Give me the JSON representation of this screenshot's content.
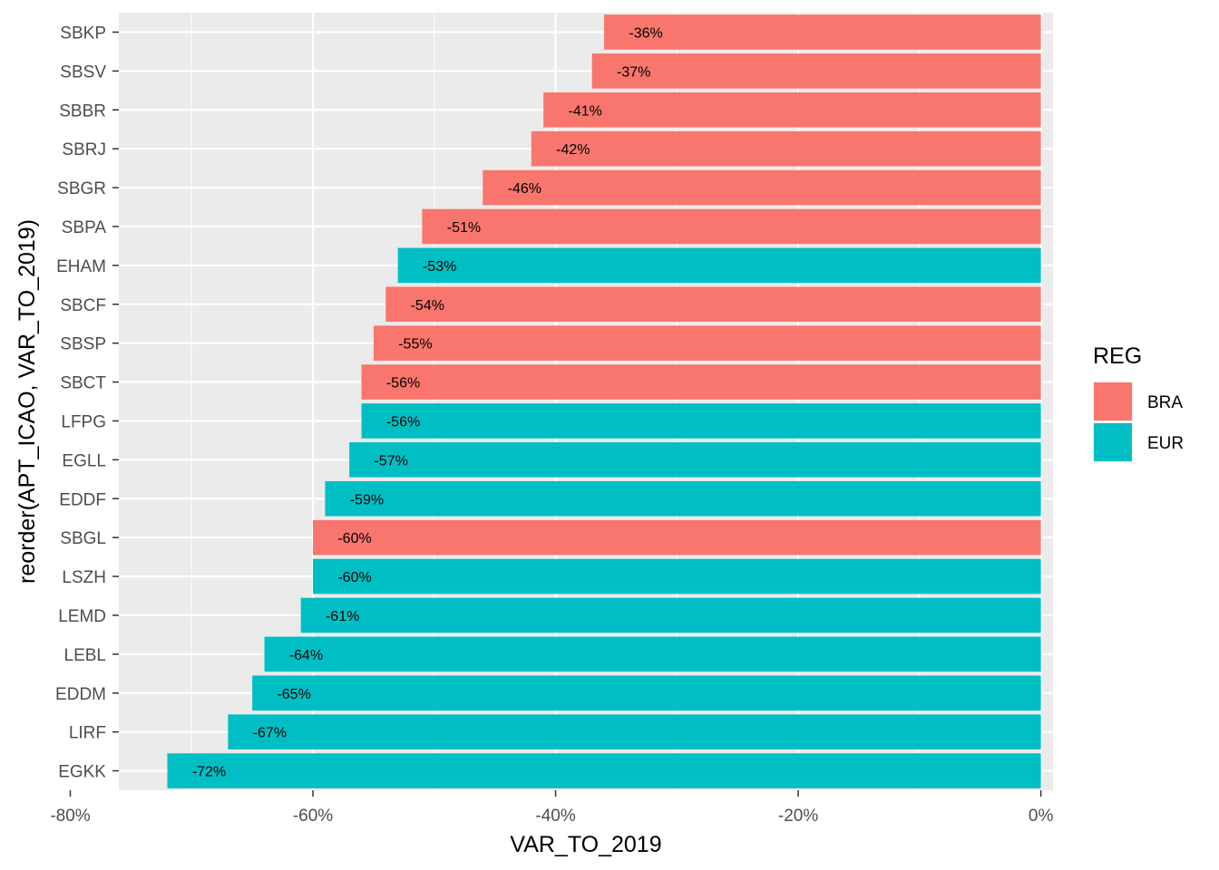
{
  "chart_data": {
    "type": "bar",
    "orientation": "horizontal",
    "xlabel": "VAR_TO_2019",
    "ylabel": "reorder(APT_ICAO, VAR_TO_2019)",
    "xlim": [
      -0.76,
      0.01
    ],
    "x_ticks": [
      -0.8,
      -0.6,
      -0.4,
      -0.2,
      0.0
    ],
    "x_tick_labels": [
      "-80%",
      "-60%",
      "-40%",
      "-20%",
      "0%"
    ],
    "grid": true,
    "legend": {
      "title": "REG",
      "placement": "right",
      "entries": [
        {
          "name": "BRA",
          "color": "#F8766D"
        },
        {
          "name": "EUR",
          "color": "#00BFC4"
        }
      ]
    },
    "categories": [
      "SBKP",
      "SBSV",
      "SBBR",
      "SBRJ",
      "SBGR",
      "SBPA",
      "EHAM",
      "SBCF",
      "SBSP",
      "SBCT",
      "LFPG",
      "EGLL",
      "EDDF",
      "SBGL",
      "LSZH",
      "LEMD",
      "LEBL",
      "EDDM",
      "LIRF",
      "EGKK"
    ],
    "values": [
      -0.36,
      -0.37,
      -0.41,
      -0.42,
      -0.46,
      -0.51,
      -0.53,
      -0.54,
      -0.55,
      -0.56,
      -0.56,
      -0.57,
      -0.59,
      -0.6,
      -0.6,
      -0.61,
      -0.64,
      -0.65,
      -0.67,
      -0.72
    ],
    "labels": [
      "-36%",
      "-37%",
      "-41%",
      "-42%",
      "-46%",
      "-51%",
      "-53%",
      "-54%",
      "-55%",
      "-56%",
      "-56%",
      "-57%",
      "-59%",
      "-60%",
      "-60%",
      "-61%",
      "-64%",
      "-65%",
      "-67%",
      "-72%"
    ],
    "groups": [
      "BRA",
      "BRA",
      "BRA",
      "BRA",
      "BRA",
      "BRA",
      "EUR",
      "BRA",
      "BRA",
      "BRA",
      "EUR",
      "EUR",
      "EUR",
      "BRA",
      "EUR",
      "EUR",
      "EUR",
      "EUR",
      "EUR",
      "EUR"
    ]
  }
}
